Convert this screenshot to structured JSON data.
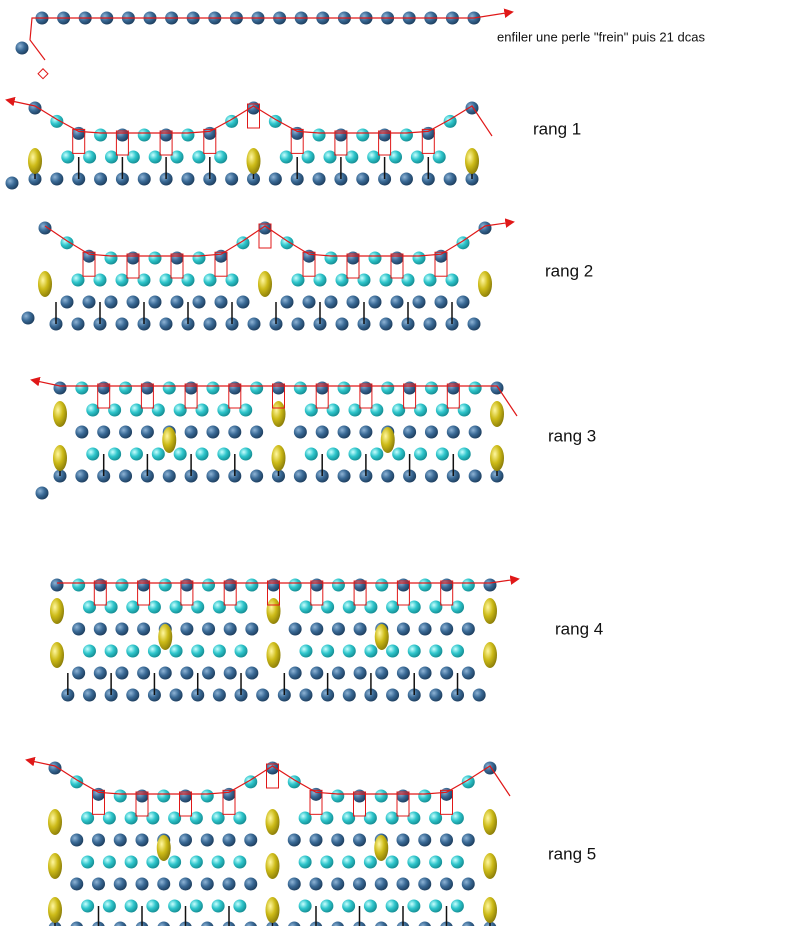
{
  "steps": [
    {
      "label": "enfiler une perle \"frein\" puis 21 dcas"
    },
    {
      "label": "rang 1"
    },
    {
      "label": "rang 2"
    },
    {
      "label": "rang 3"
    },
    {
      "label": "rang 4"
    },
    {
      "label": "rang 5"
    }
  ]
}
